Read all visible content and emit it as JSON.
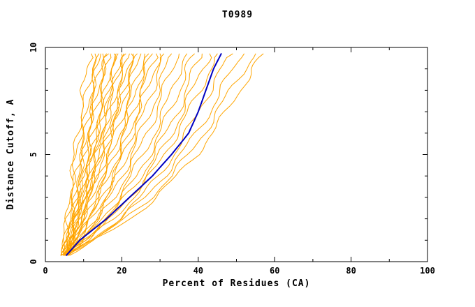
{
  "title": "T0989",
  "chart_data": {
    "type": "line",
    "title": "T0989",
    "xlabel": "Percent of Residues (CA)",
    "ylabel": "Distance Cutoff, A",
    "xlim": [
      0,
      100
    ],
    "ylim": [
      0,
      10
    ],
    "xticks": [
      0,
      20,
      40,
      60,
      80,
      100
    ],
    "yticks": [
      0,
      5,
      10
    ],
    "x_minor_step": 10,
    "y_minor_step": 1,
    "grid": false,
    "legend": "none",
    "colors": {
      "models": "#FFA500",
      "highlight": "#0000C0"
    },
    "y_grid": [
      0.3,
      1,
      2,
      3,
      4,
      5,
      6,
      7,
      8,
      9,
      9.7
    ],
    "series": [
      {
        "role": "model",
        "x": [
          5.0,
          5.5,
          6.0,
          6.5,
          7.0,
          7.8,
          8.5,
          9.2,
          10.0,
          11.0,
          12.0
        ]
      },
      {
        "role": "model",
        "x": [
          4.5,
          5.0,
          5.8,
          6.5,
          7.2,
          8.0,
          9.0,
          10.0,
          11.0,
          12.0,
          13.0
        ]
      },
      {
        "role": "model",
        "x": [
          5.0,
          5.6,
          6.5,
          7.2,
          8.0,
          9.0,
          10.0,
          11.0,
          12.0,
          13.0,
          14.0
        ]
      },
      {
        "role": "model",
        "x": [
          6.0,
          6.5,
          7.2,
          8.0,
          8.8,
          9.6,
          10.5,
          11.5,
          12.5,
          13.5,
          14.5
        ]
      },
      {
        "role": "model",
        "x": [
          5.0,
          6.0,
          7.0,
          8.0,
          9.0,
          10.0,
          11.0,
          12.0,
          13.0,
          14.0,
          15.0
        ]
      },
      {
        "role": "model",
        "x": [
          4.5,
          5.5,
          6.8,
          8.0,
          9.2,
          10.2,
          11.2,
          12.5,
          13.8,
          15.0,
          16.0
        ]
      },
      {
        "role": "model",
        "x": [
          6.0,
          7.0,
          8.0,
          9.0,
          10.0,
          11.0,
          12.0,
          13.0,
          14.2,
          15.3,
          16.5
        ]
      },
      {
        "role": "model",
        "x": [
          5.0,
          6.0,
          7.5,
          9.0,
          10.2,
          11.3,
          12.6,
          14.0,
          15.0,
          16.0,
          17.0
        ]
      },
      {
        "role": "model",
        "x": [
          5.5,
          7.0,
          8.2,
          9.5,
          11.0,
          12.0,
          13.2,
          14.5,
          16.0,
          17.0,
          18.0
        ]
      },
      {
        "role": "model",
        "x": [
          4.5,
          6.0,
          8.0,
          9.2,
          10.5,
          12.0,
          13.5,
          15.0,
          16.2,
          17.3,
          18.5
        ]
      },
      {
        "role": "model",
        "x": [
          5.0,
          6.5,
          8.0,
          10.0,
          11.2,
          12.6,
          14.0,
          15.5,
          17.0,
          18.0,
          19.0
        ]
      },
      {
        "role": "model",
        "x": [
          5.5,
          7.0,
          9.0,
          10.5,
          12.0,
          13.5,
          15.0,
          16.5,
          18.0,
          19.0,
          20.0
        ]
      },
      {
        "role": "model",
        "x": [
          4.5,
          6.0,
          7.6,
          9.6,
          11.5,
          13.0,
          14.5,
          16.0,
          17.5,
          19.0,
          20.5
        ]
      },
      {
        "role": "model",
        "x": [
          5.0,
          7.0,
          9.0,
          11.0,
          12.5,
          14.0,
          15.5,
          17.0,
          18.5,
          20.0,
          21.0
        ]
      },
      {
        "role": "model",
        "x": [
          6.0,
          7.5,
          9.5,
          11.5,
          13.2,
          15.0,
          16.5,
          18.0,
          19.5,
          21.0,
          22.0
        ]
      },
      {
        "role": "model",
        "x": [
          5.0,
          6.5,
          8.5,
          10.5,
          12.5,
          14.5,
          16.5,
          18.5,
          20.0,
          21.5,
          22.5
        ]
      },
      {
        "role": "model",
        "x": [
          4.5,
          6.5,
          9.0,
          11.0,
          13.0,
          15.0,
          17.0,
          19.0,
          20.5,
          22.0,
          23.0
        ]
      },
      {
        "role": "model",
        "x": [
          5.0,
          7.0,
          9.5,
          12.0,
          14.0,
          16.0,
          17.6,
          19.5,
          21.0,
          22.5,
          24.0
        ]
      },
      {
        "role": "model",
        "x": [
          5.5,
          7.5,
          10.0,
          12.5,
          14.5,
          16.5,
          18.5,
          20.5,
          22.0,
          23.5,
          25.0
        ]
      },
      {
        "role": "model",
        "x": [
          5.0,
          7.5,
          10.5,
          13.0,
          15.5,
          17.5,
          19.5,
          21.5,
          23.0,
          24.5,
          26.0
        ]
      },
      {
        "role": "model",
        "x": [
          6.0,
          8.0,
          11.0,
          13.5,
          16.0,
          18.0,
          20.0,
          22.0,
          23.6,
          25.5,
          27.0
        ]
      },
      {
        "role": "model",
        "x": [
          5.0,
          8.0,
          11.0,
          14.0,
          16.5,
          19.0,
          21.0,
          23.0,
          24.6,
          26.5,
          28.0
        ]
      },
      {
        "role": "model",
        "x": [
          5.5,
          8.5,
          12.0,
          15.0,
          17.5,
          20.0,
          22.0,
          24.0,
          25.5,
          27.5,
          29.0
        ]
      },
      {
        "role": "model",
        "x": [
          5.0,
          8.0,
          12.0,
          15.5,
          18.0,
          20.5,
          22.5,
          24.5,
          26.5,
          28.5,
          30.0
        ]
      },
      {
        "role": "model",
        "x": [
          6.0,
          9.0,
          13.0,
          16.0,
          19.0,
          21.5,
          23.5,
          26.0,
          28.0,
          29.5,
          31.0
        ]
      },
      {
        "role": "model",
        "x": [
          5.0,
          9.0,
          13.5,
          17.0,
          20.0,
          22.5,
          25.0,
          27.5,
          29.5,
          31.5,
          33.0
        ]
      },
      {
        "role": "model",
        "x": [
          5.5,
          9.5,
          14.0,
          18.0,
          21.0,
          24.0,
          26.5,
          29.0,
          31.0,
          33.0,
          35.0
        ]
      },
      {
        "role": "model",
        "x": [
          5.0,
          10.0,
          15.0,
          19.0,
          22.5,
          25.5,
          28.5,
          31.0,
          33.0,
          35.0,
          37.0
        ]
      },
      {
        "role": "model",
        "x": [
          6.0,
          10.5,
          16.0,
          20.0,
          24.0,
          27.0,
          30.0,
          32.5,
          35.0,
          37.0,
          39.0
        ]
      },
      {
        "role": "model",
        "x": [
          5.0,
          10.0,
          16.0,
          21.0,
          25.0,
          28.5,
          31.5,
          34.5,
          37.0,
          39.0,
          41.0
        ]
      },
      {
        "role": "model",
        "x": [
          5.5,
          11.0,
          17.0,
          22.0,
          26.5,
          30.0,
          33.0,
          36.0,
          38.5,
          41.0,
          43.0
        ]
      },
      {
        "role": "model",
        "x": [
          5.0,
          11.0,
          17.5,
          23.0,
          27.5,
          31.0,
          34.5,
          37.5,
          40.5,
          43.0,
          45.0
        ]
      },
      {
        "role": "model",
        "x": [
          6.0,
          12.0,
          19.0,
          25.0,
          29.5,
          33.5,
          37.0,
          40.0,
          43.0,
          46.0,
          49.0
        ]
      },
      {
        "role": "model",
        "x": [
          5.0,
          12.0,
          20.0,
          26.0,
          31.0,
          35.5,
          39.5,
          43.0,
          46.0,
          49.0,
          52.0
        ]
      },
      {
        "role": "model",
        "x": [
          5.5,
          13.0,
          21.0,
          27.5,
          33.0,
          37.5,
          41.5,
          45.0,
          48.5,
          52.0,
          55.0
        ]
      },
      {
        "role": "model",
        "x": [
          5.0,
          13.0,
          22.0,
          29.0,
          34.5,
          39.5,
          43.5,
          47.5,
          51.0,
          54.0,
          57.0
        ]
      },
      {
        "role": "highlight",
        "x": [
          5.5,
          9.0,
          16.0,
          22.0,
          28.0,
          33.0,
          37.5,
          40.0,
          42.0,
          44.0,
          46.0
        ]
      }
    ]
  }
}
